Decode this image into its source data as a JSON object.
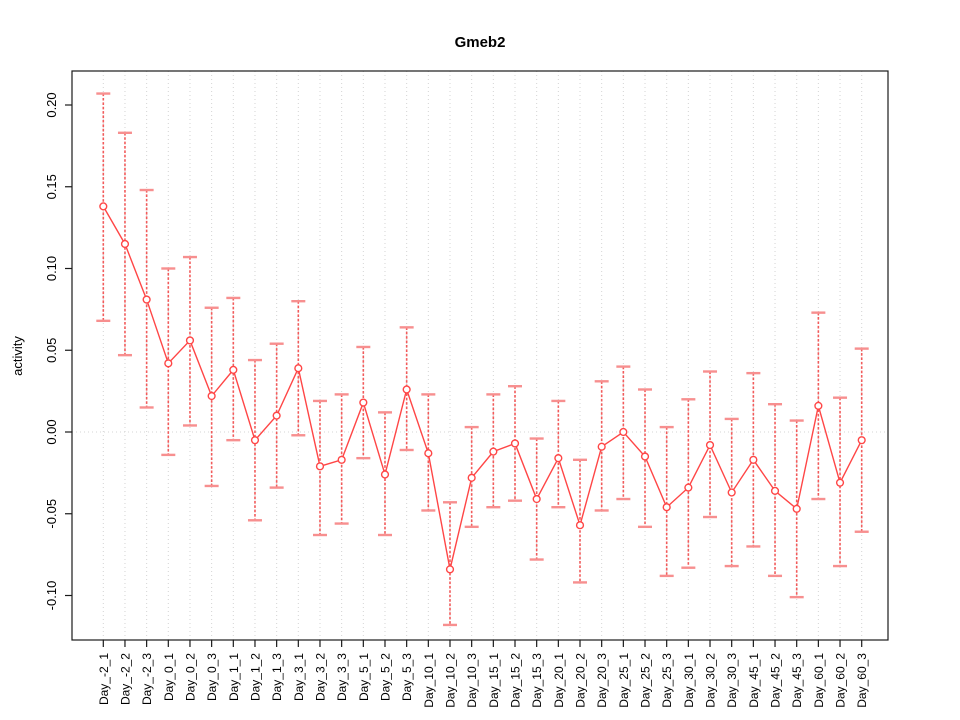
{
  "title": "Gmeb2",
  "colors": {
    "series": "#ff4646",
    "errorbar_stem": "#f25b5b",
    "errorbar_cap": "#f78f8f",
    "gridline": "#d4d4d4",
    "axis": "#1a1a1a"
  },
  "chart_data": {
    "type": "scatter",
    "title": "Gmeb2",
    "xlabel": "",
    "ylabel": "activity",
    "ylim": [
      -0.125,
      0.215
    ],
    "ytick_labels": [
      "-0.10",
      "-0.05",
      "0.00",
      "0.05",
      "0.10",
      "0.15",
      "0.20"
    ],
    "grid": "dotted vertical gridline at every category; dotted horizontal line at y=0; legend: none",
    "categories": [
      "Day_-2_1",
      "Day_-2_2",
      "Day_-2_3",
      "Day_0_1",
      "Day_0_2",
      "Day_0_3",
      "Day_1_1",
      "Day_1_2",
      "Day_1_3",
      "Day_3_1",
      "Day_3_2",
      "Day_3_3",
      "Day_5_1",
      "Day_5_2",
      "Day_5_3",
      "Day_10_1",
      "Day_10_2",
      "Day_10_3",
      "Day_15_1",
      "Day_15_2",
      "Day_15_3",
      "Day_20_1",
      "Day_20_2",
      "Day_20_3",
      "Day_25_1",
      "Day_25_2",
      "Day_25_3",
      "Day_30_1",
      "Day_30_2",
      "Day_30_3",
      "Day_45_1",
      "Day_45_2",
      "Day_45_3",
      "Day_60_1",
      "Day_60_2",
      "Day_60_3"
    ],
    "series": [
      {
        "name": "activity",
        "values": [
          0.138,
          0.115,
          0.081,
          0.042,
          0.056,
          0.022,
          0.038,
          -0.005,
          0.01,
          0.039,
          -0.021,
          -0.017,
          0.018,
          -0.026,
          0.026,
          -0.013,
          -0.084,
          -0.028,
          -0.012,
          -0.007,
          -0.041,
          -0.016,
          -0.057,
          -0.009,
          0.0,
          -0.015,
          -0.046,
          -0.034,
          -0.008,
          -0.037,
          -0.017,
          -0.036,
          -0.047,
          0.016,
          -0.031,
          -0.005
        ],
        "lower": [
          0.068,
          0.047,
          0.015,
          -0.014,
          0.004,
          -0.033,
          -0.005,
          -0.054,
          -0.034,
          -0.002,
          -0.063,
          -0.056,
          -0.016,
          -0.063,
          -0.011,
          -0.048,
          -0.118,
          -0.058,
          -0.046,
          -0.042,
          -0.078,
          -0.046,
          -0.092,
          -0.048,
          -0.041,
          -0.058,
          -0.088,
          -0.083,
          -0.052,
          -0.082,
          -0.07,
          -0.088,
          -0.101,
          -0.041,
          -0.082,
          -0.061
        ],
        "upper": [
          0.207,
          0.183,
          0.148,
          0.1,
          0.107,
          0.076,
          0.082,
          0.044,
          0.054,
          0.08,
          0.019,
          0.023,
          0.052,
          0.012,
          0.064,
          0.023,
          -0.043,
          0.003,
          0.023,
          0.028,
          -0.004,
          0.019,
          -0.017,
          0.031,
          0.04,
          0.026,
          0.003,
          0.02,
          0.037,
          0.008,
          0.036,
          0.017,
          0.007,
          0.073,
          0.021,
          0.051
        ]
      }
    ]
  }
}
